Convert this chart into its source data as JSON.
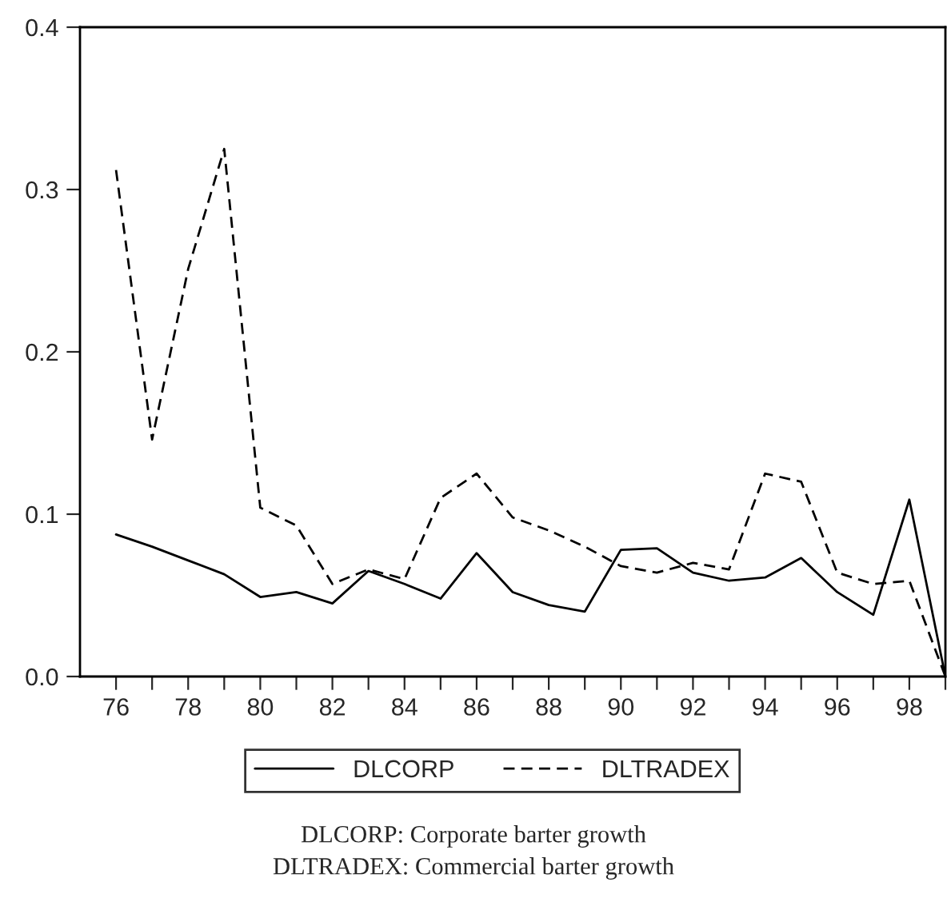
{
  "chart_data": {
    "type": "line",
    "x": [
      76,
      77,
      78,
      79,
      80,
      81,
      82,
      83,
      84,
      85,
      86,
      87,
      88,
      89,
      90,
      91,
      92,
      93,
      94,
      95,
      96,
      97,
      98,
      99
    ],
    "series": [
      {
        "name": "DLCORP",
        "color": "#000000",
        "line_style": "solid",
        "values": [
          0.0875,
          0.08,
          0.0715,
          0.063,
          0.049,
          0.052,
          0.045,
          0.065,
          0.057,
          0.048,
          0.076,
          0.052,
          0.044,
          0.04,
          0.078,
          0.079,
          0.064,
          0.059,
          0.061,
          0.073,
          0.052,
          0.038,
          0.109,
          0.0
        ]
      },
      {
        "name": "DLTRADEX",
        "color": "#000000",
        "line_style": "dashed",
        "values": [
          0.312,
          0.146,
          0.251,
          0.325,
          0.104,
          0.093,
          0.057,
          0.066,
          0.06,
          0.11,
          0.125,
          0.098,
          0.09,
          0.08,
          0.068,
          0.064,
          0.07,
          0.066,
          0.125,
          0.12,
          0.064,
          0.057,
          0.059,
          0.0
        ]
      }
    ],
    "xlim": [
      75,
      99
    ],
    "xticks": [
      {
        "value": 76,
        "label": "76"
      },
      {
        "value": 77,
        "label": null
      },
      {
        "value": 78,
        "label": "78"
      },
      {
        "value": 79,
        "label": null
      },
      {
        "value": 80,
        "label": "80"
      },
      {
        "value": 81,
        "label": null
      },
      {
        "value": 82,
        "label": "82"
      },
      {
        "value": 83,
        "label": null
      },
      {
        "value": 84,
        "label": "84"
      },
      {
        "value": 85,
        "label": null
      },
      {
        "value": 86,
        "label": "86"
      },
      {
        "value": 87,
        "label": null
      },
      {
        "value": 88,
        "label": "88"
      },
      {
        "value": 89,
        "label": null
      },
      {
        "value": 90,
        "label": "90"
      },
      {
        "value": 91,
        "label": null
      },
      {
        "value": 92,
        "label": "92"
      },
      {
        "value": 93,
        "label": null
      },
      {
        "value": 94,
        "label": "94"
      },
      {
        "value": 95,
        "label": null
      },
      {
        "value": 96,
        "label": "96"
      },
      {
        "value": 97,
        "label": null
      },
      {
        "value": 98,
        "label": "98"
      },
      {
        "value": 99,
        "label": null
      }
    ],
    "ylim": [
      0,
      0.4
    ],
    "yticks": [
      {
        "value": 0,
        "label": "0.0"
      },
      {
        "value": 0.1,
        "label": "0.1"
      },
      {
        "value": 0.2,
        "label": "0.2"
      },
      {
        "value": 0.3,
        "label": "0.3"
      },
      {
        "value": 0.4,
        "label": "0.4"
      }
    ],
    "grid": false,
    "legend": "bottom",
    "marker": "none",
    "annotations": [
      "DLCORP: Corporate barter growth",
      "DLTRADEX: Commercial barter growth"
    ]
  }
}
